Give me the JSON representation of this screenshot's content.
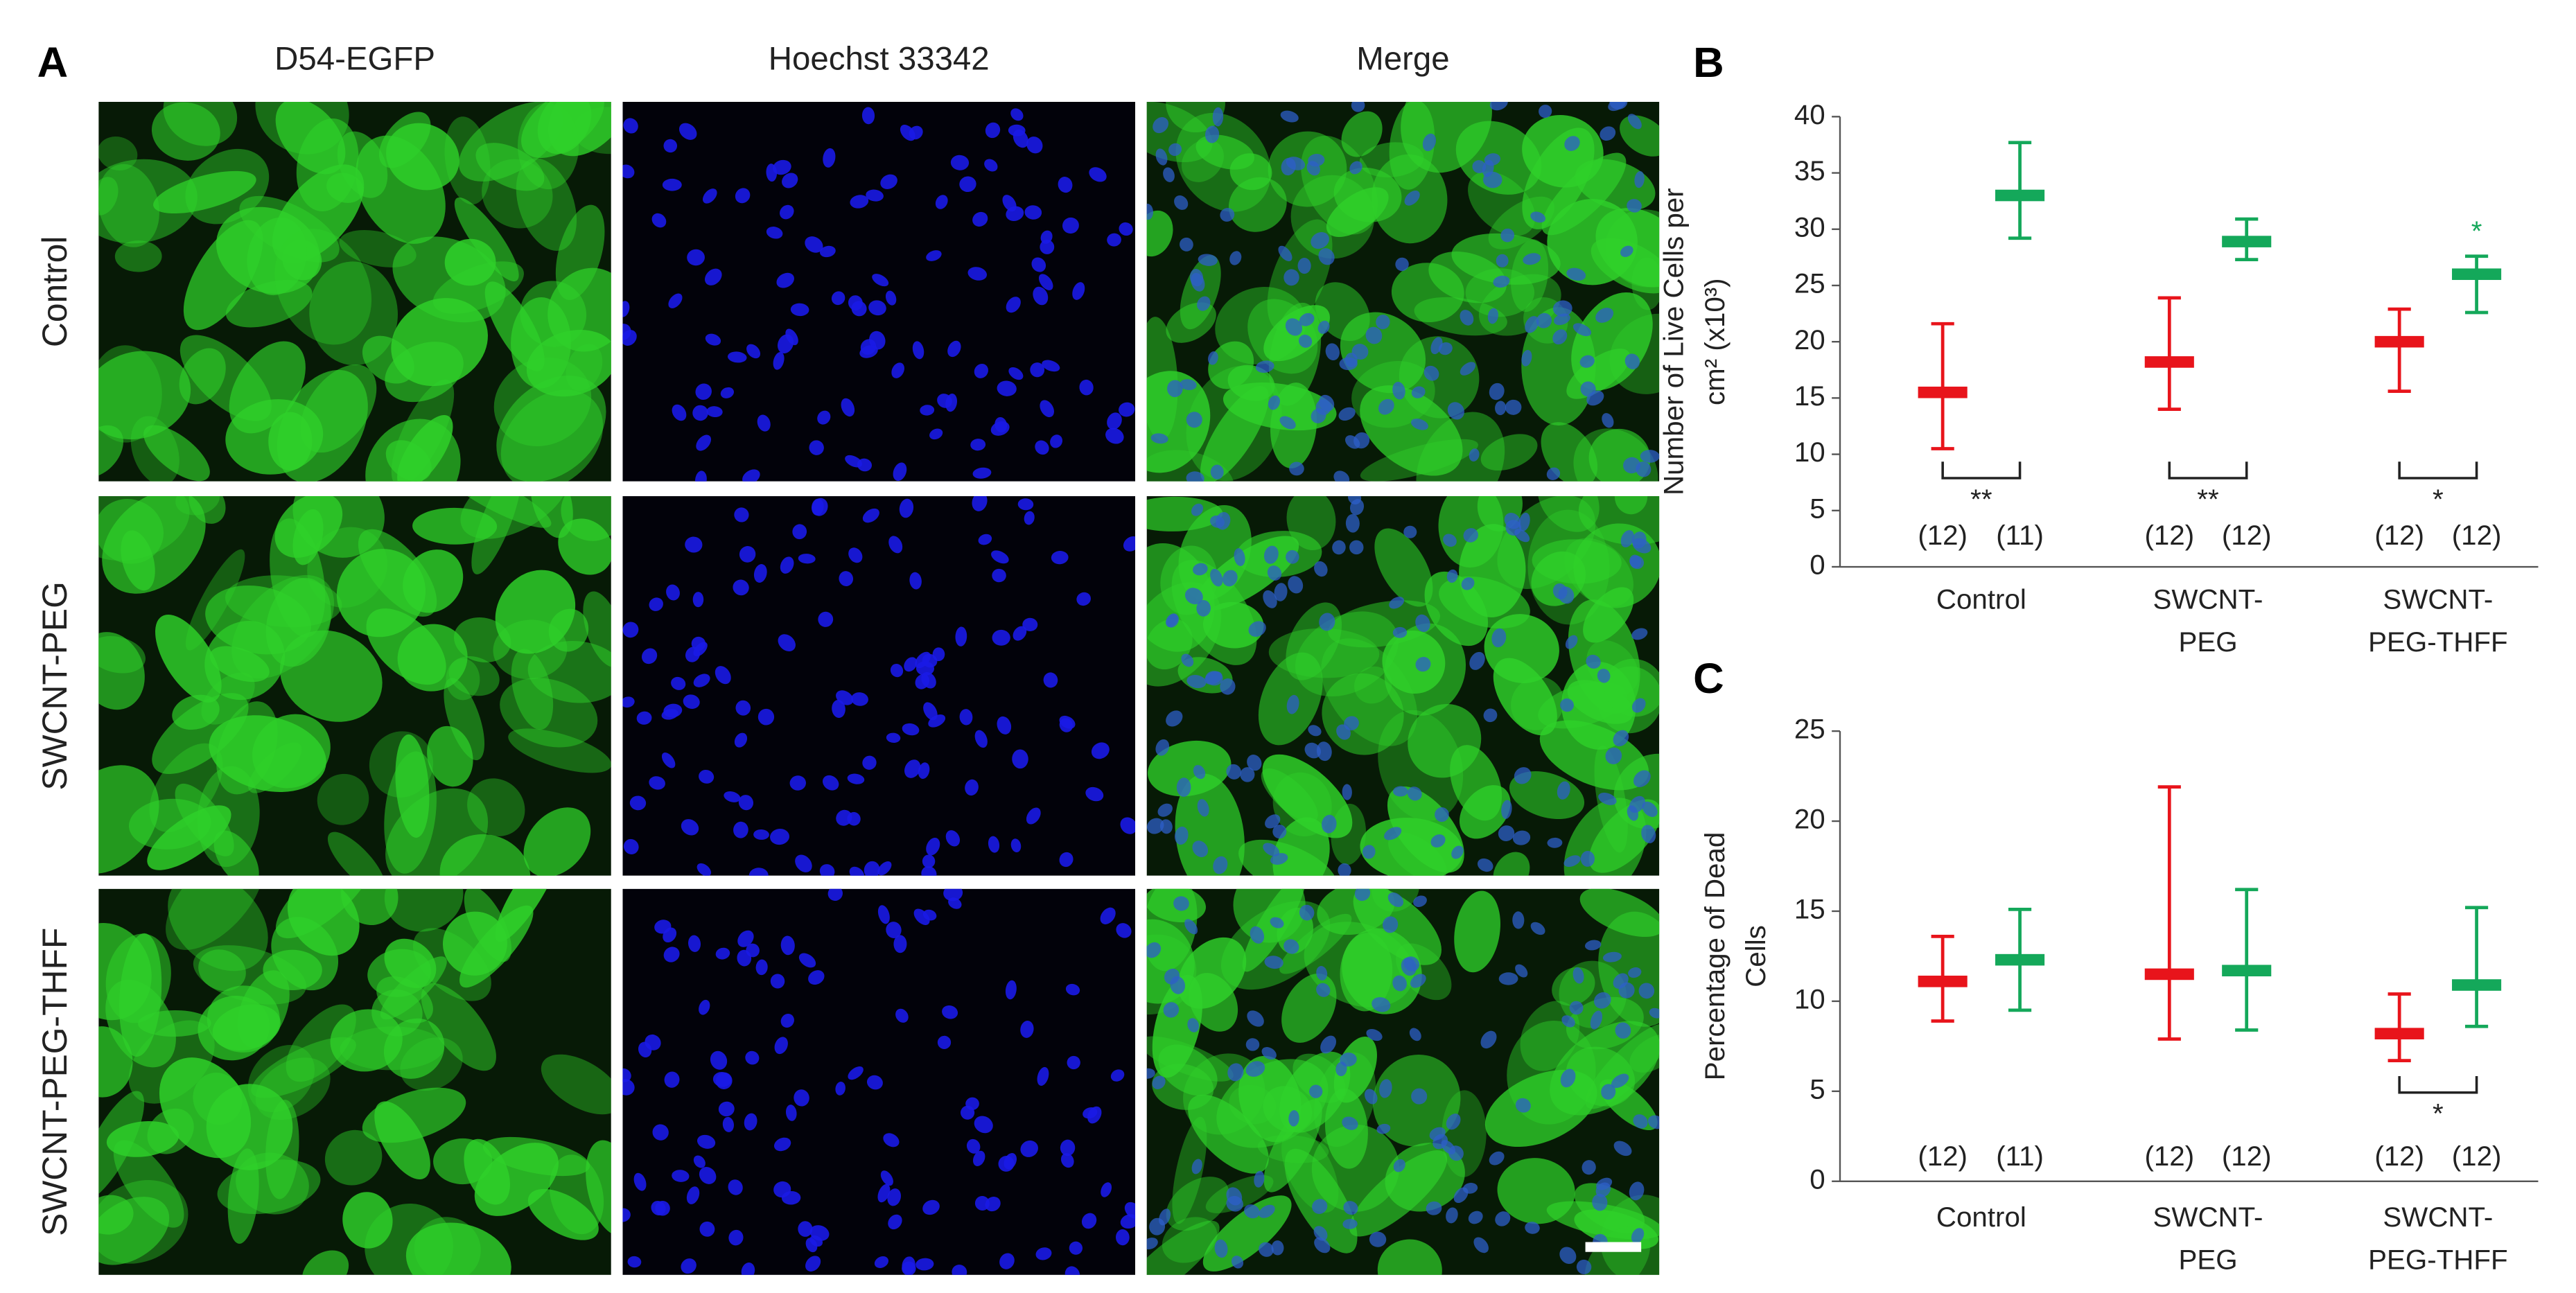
{
  "panel_a": {
    "panel_letter": "A",
    "column_titles": [
      "D54-EGFP",
      "Hoechst 33342",
      "Merge"
    ],
    "row_labels": [
      "Control",
      "SWCNT-PEG",
      "SWCNT-PEG-THFF"
    ]
  },
  "chart_data": [
    {
      "type": "meanrange",
      "panel_letter": "B",
      "y_label": [
        "Number of Live Cells per",
        "cm² (x10³)"
      ],
      "categories": [
        [
          "Control"
        ],
        [
          "SWCNT-",
          "PEG"
        ],
        [
          "SWCNT-",
          "PEG-THFF"
        ]
      ],
      "ylim": [
        0,
        40
      ],
      "yticks": [
        0,
        5,
        10,
        15,
        20,
        25,
        30,
        35,
        40
      ],
      "series": [
        {
          "color": "#e8141b",
          "values": [
            15.5,
            18.2,
            20
          ],
          "low": [
            10.5,
            14,
            15.6
          ],
          "high": [
            21.6,
            23.9,
            22.9
          ],
          "n_labels": [
            "(12)",
            "(12)",
            "(12)"
          ]
        },
        {
          "color": "#14a85a",
          "values": [
            33,
            28.9,
            26
          ],
          "low": [
            29.2,
            27.3,
            22.6
          ],
          "high": [
            37.7,
            30.9,
            27.6
          ],
          "n_labels": [
            "(11)",
            "(12)",
            "(12)"
          ],
          "stars": [
            null,
            null,
            "*"
          ]
        }
      ],
      "significance": [
        "**",
        "**",
        "*"
      ]
    },
    {
      "type": "meanrange",
      "panel_letter": "C",
      "y_label": [
        "Percentage of Dead",
        "Cells"
      ],
      "categories": [
        [
          "Control"
        ],
        [
          "SWCNT-",
          "PEG"
        ],
        [
          "SWCNT-",
          "PEG-THFF"
        ]
      ],
      "ylim": [
        0,
        25
      ],
      "yticks": [
        0,
        5,
        10,
        15,
        20,
        25
      ],
      "series": [
        {
          "color": "#e8141b",
          "values": [
            11.1,
            11.5,
            8.2
          ],
          "low": [
            8.9,
            7.9,
            6.7
          ],
          "high": [
            13.6,
            21.9,
            10.4
          ],
          "n_labels": [
            "(12)",
            "(12)",
            "(12)"
          ]
        },
        {
          "color": "#14a85a",
          "values": [
            12.3,
            11.7,
            10.9
          ],
          "low": [
            9.5,
            8.4,
            8.6
          ],
          "high": [
            15.1,
            16.2,
            15.2
          ],
          "n_labels": [
            "(11)",
            "(12)",
            "(12)"
          ]
        }
      ],
      "significance": [
        null,
        null,
        "*"
      ]
    }
  ]
}
